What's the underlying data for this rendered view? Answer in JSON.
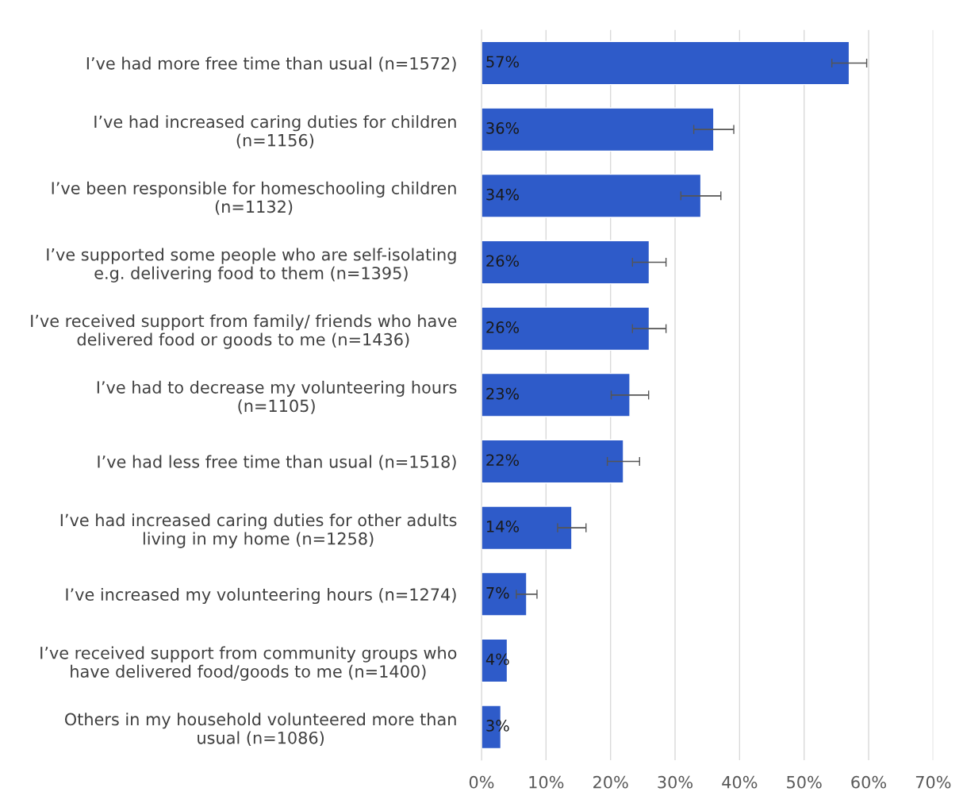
{
  "chart_data": {
    "type": "bar",
    "orientation": "horizontal",
    "categories": [
      "I’ve had more free time than usual (n=1572)",
      "I’ve had increased caring duties for children\n(n=1156)",
      "I’ve been responsible for homeschooling children\n(n=1132)",
      "I’ve supported some people who are self-isolating\ne.g. delivering food to them (n=1395)",
      "I’ve received support from family/ friends who have\ndelivered food or goods to me (n=1436)",
      "I’ve had to decrease my volunteering hours\n(n=1105)",
      "I’ve had less free time than usual (n=1518)",
      "I’ve had increased caring duties for other adults\nliving in my home (n=1258)",
      "I’ve increased my volunteering hours (n=1274)",
      "I’ve received support from community groups who\nhave delivered food/goods to me (n=1400)",
      "Others in my household volunteered more than\nusual (n=1086)"
    ],
    "values": [
      57,
      36,
      34,
      26,
      26,
      23,
      22,
      14,
      7,
      4,
      3
    ],
    "errors": [
      2.7,
      3.1,
      3.1,
      2.6,
      2.6,
      2.9,
      2.5,
      2.2,
      1.6,
      null,
      null
    ],
    "value_labels": [
      "57%",
      "36%",
      "34%",
      "26%",
      "26%",
      "23%",
      "22%",
      "14%",
      "7%",
      "4%",
      "3%"
    ],
    "color": "#2e5bc9",
    "xlim": [
      0,
      70
    ],
    "xticks": [
      {
        "value": 0,
        "label": "0%"
      },
      {
        "value": 10,
        "label": "10%"
      },
      {
        "value": 20,
        "label": "20%"
      },
      {
        "value": 30,
        "label": "30%"
      },
      {
        "value": 40,
        "label": "40%"
      },
      {
        "value": 50,
        "label": "50%"
      },
      {
        "value": 60,
        "label": "60%"
      },
      {
        "value": 70,
        "label": "70%"
      }
    ],
    "grid": "x"
  }
}
